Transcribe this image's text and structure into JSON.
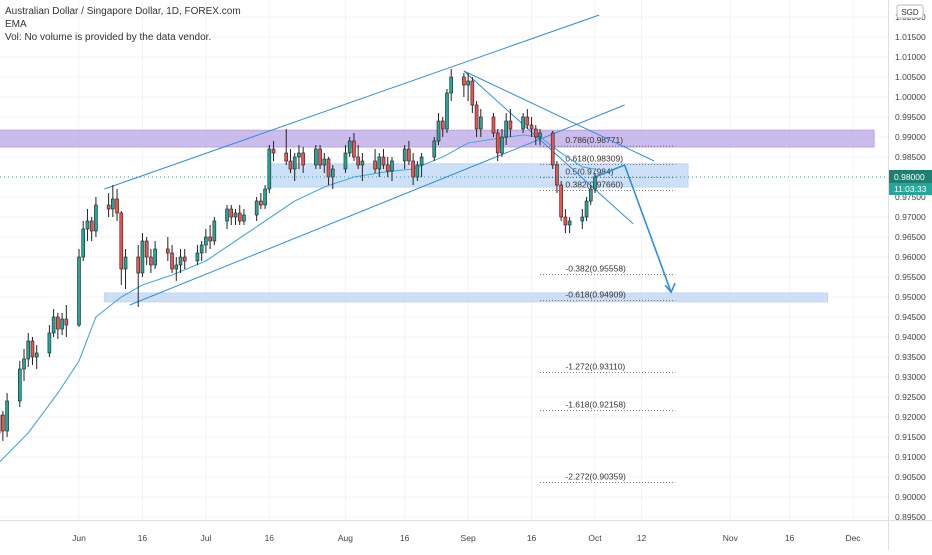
{
  "legend": {
    "symbol": "Australian Dollar / Singapore Dollar, 1D, FOREX.com",
    "indicator": "EMA",
    "volume_note": "Vol: No volume is provided by the data vendor."
  },
  "currency_badge": "SGD",
  "price_tag": {
    "price": "0.98000",
    "countdown": "11:03:33"
  },
  "colors": {
    "up": "#26a69a",
    "down": "#ef5350",
    "ema": "#4aa8e0",
    "trend": "#2f8ee0",
    "fib": "#555555",
    "resistance_zone": "#b9a6e6",
    "support_zone": "#bcd6f4",
    "price_tag": "#1e7f72",
    "time_tag": "#26a69a"
  },
  "chart_data": {
    "type": "candlestick",
    "symbol": "AUDSGD",
    "timeframe": "1D",
    "ylim": [
      0.8935,
      1.0235
    ],
    "y_ticks": [
      "0.89500",
      "0.90000",
      "0.90500",
      "0.91000",
      "0.91500",
      "0.92000",
      "0.92500",
      "0.93000",
      "0.93500",
      "0.94000",
      "0.94500",
      "0.95000",
      "0.95500",
      "0.96000",
      "0.96500",
      "0.97000",
      "0.97500",
      "0.98000",
      "0.98500",
      "0.99000",
      "0.99500",
      "1.00000",
      "1.00500",
      "1.01000",
      "1.01500",
      "1.02000"
    ],
    "x_ticks": [
      {
        "label": "Jun",
        "date": "2020-06-01"
      },
      {
        "label": "16",
        "date": "2020-06-16"
      },
      {
        "label": "Jul",
        "date": "2020-07-01"
      },
      {
        "label": "16",
        "date": "2020-07-16"
      },
      {
        "label": "Aug",
        "date": "2020-08-03"
      },
      {
        "label": "16",
        "date": "2020-08-17"
      },
      {
        "label": "Sep",
        "date": "2020-09-01"
      },
      {
        "label": "16",
        "date": "2020-09-16"
      },
      {
        "label": "Oct",
        "date": "2020-10-01"
      },
      {
        "label": "12",
        "date": "2020-10-12"
      },
      {
        "label": "Nov",
        "date": "2020-11-02"
      },
      {
        "label": "16",
        "date": "2020-11-16"
      },
      {
        "label": "Dec",
        "date": "2020-12-01"
      }
    ],
    "candles": [
      {
        "d": "2020-05-13",
        "o": 0.916,
        "h": 0.923,
        "l": 0.913,
        "c": 0.9205
      },
      {
        "d": "2020-05-14",
        "o": 0.9205,
        "h": 0.9215,
        "l": 0.914,
        "c": 0.9165
      },
      {
        "d": "2020-05-15",
        "o": 0.9165,
        "h": 0.926,
        "l": 0.915,
        "c": 0.924
      },
      {
        "d": "2020-05-18",
        "o": 0.924,
        "h": 0.934,
        "l": 0.9225,
        "c": 0.932
      },
      {
        "d": "2020-05-19",
        "o": 0.932,
        "h": 0.937,
        "l": 0.929,
        "c": 0.9345
      },
      {
        "d": "2020-05-20",
        "o": 0.9345,
        "h": 0.941,
        "l": 0.9325,
        "c": 0.939
      },
      {
        "d": "2020-05-21",
        "o": 0.939,
        "h": 0.94,
        "l": 0.933,
        "c": 0.935
      },
      {
        "d": "2020-05-22",
        "o": 0.935,
        "h": 0.938,
        "l": 0.932,
        "c": 0.936
      },
      {
        "d": "2020-05-25",
        "o": 0.936,
        "h": 0.943,
        "l": 0.935,
        "c": 0.941
      },
      {
        "d": "2020-05-26",
        "o": 0.941,
        "h": 0.947,
        "l": 0.94,
        "c": 0.945
      },
      {
        "d": "2020-05-27",
        "o": 0.945,
        "h": 0.946,
        "l": 0.9395,
        "c": 0.942
      },
      {
        "d": "2020-05-28",
        "o": 0.942,
        "h": 0.946,
        "l": 0.9405,
        "c": 0.9445
      },
      {
        "d": "2020-05-29",
        "o": 0.9445,
        "h": 0.948,
        "l": 0.94,
        "c": 0.943
      },
      {
        "d": "2020-06-01",
        "o": 0.943,
        "h": 0.962,
        "l": 0.9425,
        "c": 0.96
      },
      {
        "d": "2020-06-02",
        "o": 0.96,
        "h": 0.969,
        "l": 0.959,
        "c": 0.967
      },
      {
        "d": "2020-06-03",
        "o": 0.967,
        "h": 0.972,
        "l": 0.964,
        "c": 0.969
      },
      {
        "d": "2020-06-04",
        "o": 0.969,
        "h": 0.97,
        "l": 0.964,
        "c": 0.9665
      },
      {
        "d": "2020-06-05",
        "o": 0.9665,
        "h": 0.975,
        "l": 0.965,
        "c": 0.973
      },
      {
        "d": "2020-06-08",
        "o": 0.973,
        "h": 0.976,
        "l": 0.97,
        "c": 0.972
      },
      {
        "d": "2020-06-09",
        "o": 0.972,
        "h": 0.978,
        "l": 0.97,
        "c": 0.9745
      },
      {
        "d": "2020-06-10",
        "o": 0.9745,
        "h": 0.977,
        "l": 0.969,
        "c": 0.971
      },
      {
        "d": "2020-06-11",
        "o": 0.971,
        "h": 0.9715,
        "l": 0.953,
        "c": 0.957
      },
      {
        "d": "2020-06-12",
        "o": 0.957,
        "h": 0.962,
        "l": 0.952,
        "c": 0.96
      },
      {
        "d": "2020-06-15",
        "o": 0.96,
        "h": 0.963,
        "l": 0.9475,
        "c": 0.956
      },
      {
        "d": "2020-06-16",
        "o": 0.956,
        "h": 0.966,
        "l": 0.955,
        "c": 0.964
      },
      {
        "d": "2020-06-17",
        "o": 0.964,
        "h": 0.965,
        "l": 0.958,
        "c": 0.96
      },
      {
        "d": "2020-06-18",
        "o": 0.96,
        "h": 0.962,
        "l": 0.956,
        "c": 0.958
      },
      {
        "d": "2020-06-19",
        "o": 0.958,
        "h": 0.964,
        "l": 0.957,
        "c": 0.962
      },
      {
        "d": "2020-06-22",
        "o": 0.962,
        "h": 0.965,
        "l": 0.959,
        "c": 0.961
      },
      {
        "d": "2020-06-23",
        "o": 0.961,
        "h": 0.963,
        "l": 0.956,
        "c": 0.957
      },
      {
        "d": "2020-06-24",
        "o": 0.957,
        "h": 0.96,
        "l": 0.954,
        "c": 0.958
      },
      {
        "d": "2020-06-25",
        "o": 0.958,
        "h": 0.962,
        "l": 0.956,
        "c": 0.96
      },
      {
        "d": "2020-06-26",
        "o": 0.96,
        "h": 0.962,
        "l": 0.957,
        "c": 0.959
      },
      {
        "d": "2020-06-29",
        "o": 0.959,
        "h": 0.963,
        "l": 0.958,
        "c": 0.961
      },
      {
        "d": "2020-06-30",
        "o": 0.961,
        "h": 0.964,
        "l": 0.959,
        "c": 0.963
      },
      {
        "d": "2020-07-01",
        "o": 0.963,
        "h": 0.967,
        "l": 0.961,
        "c": 0.965
      },
      {
        "d": "2020-07-02",
        "o": 0.965,
        "h": 0.968,
        "l": 0.962,
        "c": 0.964
      },
      {
        "d": "2020-07-03",
        "o": 0.964,
        "h": 0.97,
        "l": 0.963,
        "c": 0.969
      },
      {
        "d": "2020-07-06",
        "o": 0.969,
        "h": 0.973,
        "l": 0.967,
        "c": 0.972
      },
      {
        "d": "2020-07-07",
        "o": 0.972,
        "h": 0.973,
        "l": 0.968,
        "c": 0.97
      },
      {
        "d": "2020-07-08",
        "o": 0.97,
        "h": 0.972,
        "l": 0.968,
        "c": 0.971
      },
      {
        "d": "2020-07-09",
        "o": 0.971,
        "h": 0.973,
        "l": 0.968,
        "c": 0.969
      },
      {
        "d": "2020-07-10",
        "o": 0.969,
        "h": 0.972,
        "l": 0.968,
        "c": 0.9705
      },
      {
        "d": "2020-07-13",
        "o": 0.9705,
        "h": 0.975,
        "l": 0.969,
        "c": 0.974
      },
      {
        "d": "2020-07-14",
        "o": 0.974,
        "h": 0.976,
        "l": 0.972,
        "c": 0.973
      },
      {
        "d": "2020-07-15",
        "o": 0.973,
        "h": 0.978,
        "l": 0.972,
        "c": 0.977
      },
      {
        "d": "2020-07-16",
        "o": 0.977,
        "h": 0.988,
        "l": 0.976,
        "c": 0.987
      },
      {
        "d": "2020-07-17",
        "o": 0.987,
        "h": 0.989,
        "l": 0.984,
        "c": 0.986
      },
      {
        "d": "2020-07-20",
        "o": 0.986,
        "h": 0.992,
        "l": 0.983,
        "c": 0.984
      },
      {
        "d": "2020-07-21",
        "o": 0.984,
        "h": 0.987,
        "l": 0.981,
        "c": 0.982
      },
      {
        "d": "2020-07-22",
        "o": 0.982,
        "h": 0.986,
        "l": 0.979,
        "c": 0.985
      },
      {
        "d": "2020-07-23",
        "o": 0.985,
        "h": 0.988,
        "l": 0.982,
        "c": 0.986
      },
      {
        "d": "2020-07-24",
        "o": 0.986,
        "h": 0.9875,
        "l": 0.981,
        "c": 0.983
      },
      {
        "d": "2020-07-27",
        "o": 0.983,
        "h": 0.988,
        "l": 0.982,
        "c": 0.987
      },
      {
        "d": "2020-07-28",
        "o": 0.987,
        "h": 0.988,
        "l": 0.982,
        "c": 0.983
      },
      {
        "d": "2020-07-29",
        "o": 0.983,
        "h": 0.986,
        "l": 0.981,
        "c": 0.9845
      },
      {
        "d": "2020-07-30",
        "o": 0.9845,
        "h": 0.985,
        "l": 0.978,
        "c": 0.98
      },
      {
        "d": "2020-07-31",
        "o": 0.98,
        "h": 0.983,
        "l": 0.977,
        "c": 0.982
      },
      {
        "d": "2020-08-03",
        "o": 0.982,
        "h": 0.988,
        "l": 0.981,
        "c": 0.986
      },
      {
        "d": "2020-08-04",
        "o": 0.986,
        "h": 0.99,
        "l": 0.985,
        "c": 0.989
      },
      {
        "d": "2020-08-05",
        "o": 0.989,
        "h": 0.991,
        "l": 0.984,
        "c": 0.985
      },
      {
        "d": "2020-08-06",
        "o": 0.985,
        "h": 0.988,
        "l": 0.982,
        "c": 0.983
      },
      {
        "d": "2020-08-07",
        "o": 0.983,
        "h": 0.986,
        "l": 0.979,
        "c": 0.984
      },
      {
        "d": "2020-08-10",
        "o": 0.984,
        "h": 0.987,
        "l": 0.981,
        "c": 0.982
      },
      {
        "d": "2020-08-11",
        "o": 0.982,
        "h": 0.986,
        "l": 0.98,
        "c": 0.985
      },
      {
        "d": "2020-08-12",
        "o": 0.985,
        "h": 0.987,
        "l": 0.982,
        "c": 0.983
      },
      {
        "d": "2020-08-13",
        "o": 0.983,
        "h": 0.985,
        "l": 0.98,
        "c": 0.9815
      },
      {
        "d": "2020-08-14",
        "o": 0.9815,
        "h": 0.985,
        "l": 0.979,
        "c": 0.984
      },
      {
        "d": "2020-08-17",
        "o": 0.984,
        "h": 0.988,
        "l": 0.982,
        "c": 0.987
      },
      {
        "d": "2020-08-18",
        "o": 0.987,
        "h": 0.989,
        "l": 0.983,
        "c": 0.984
      },
      {
        "d": "2020-08-19",
        "o": 0.984,
        "h": 0.986,
        "l": 0.978,
        "c": 0.98
      },
      {
        "d": "2020-08-20",
        "o": 0.98,
        "h": 0.984,
        "l": 0.979,
        "c": 0.983
      },
      {
        "d": "2020-08-21",
        "o": 0.983,
        "h": 0.986,
        "l": 0.98,
        "c": 0.985
      },
      {
        "d": "2020-08-24",
        "o": 0.985,
        "h": 0.99,
        "l": 0.984,
        "c": 0.989
      },
      {
        "d": "2020-08-25",
        "o": 0.989,
        "h": 0.996,
        "l": 0.988,
        "c": 0.994
      },
      {
        "d": "2020-08-26",
        "o": 0.994,
        "h": 0.995,
        "l": 0.99,
        "c": 0.992
      },
      {
        "d": "2020-08-27",
        "o": 0.992,
        "h": 1.002,
        "l": 0.991,
        "c": 1.001
      },
      {
        "d": "2020-08-28",
        "o": 1.001,
        "h": 1.007,
        "l": 0.999,
        "c": 1.005
      },
      {
        "d": "2020-08-31",
        "o": 1.005,
        "h": 1.006,
        "l": 1.0,
        "c": 1.003
      },
      {
        "d": "2020-09-01",
        "o": 1.003,
        "h": 1.006,
        "l": 0.999,
        "c": 1.004
      },
      {
        "d": "2020-09-02",
        "o": 1.004,
        "h": 1.005,
        "l": 0.996,
        "c": 0.998
      },
      {
        "d": "2020-09-03",
        "o": 0.998,
        "h": 0.999,
        "l": 0.99,
        "c": 0.992
      },
      {
        "d": "2020-09-04",
        "o": 0.992,
        "h": 0.997,
        "l": 0.99,
        "c": 0.995
      },
      {
        "d": "2020-09-07",
        "o": 0.995,
        "h": 0.996,
        "l": 0.99,
        "c": 0.991
      },
      {
        "d": "2020-09-08",
        "o": 0.991,
        "h": 0.992,
        "l": 0.984,
        "c": 0.986
      },
      {
        "d": "2020-09-09",
        "o": 0.986,
        "h": 0.992,
        "l": 0.985,
        "c": 0.99
      },
      {
        "d": "2020-09-10",
        "o": 0.99,
        "h": 0.996,
        "l": 0.988,
        "c": 0.994
      },
      {
        "d": "2020-09-11",
        "o": 0.994,
        "h": 0.997,
        "l": 0.99,
        "c": 0.992
      },
      {
        "d": "2020-09-14",
        "o": 0.992,
        "h": 0.996,
        "l": 0.991,
        "c": 0.995
      },
      {
        "d": "2020-09-15",
        "o": 0.995,
        "h": 0.997,
        "l": 0.992,
        "c": 0.993
      },
      {
        "d": "2020-09-16",
        "o": 0.993,
        "h": 0.995,
        "l": 0.99,
        "c": 0.992
      },
      {
        "d": "2020-09-17",
        "o": 0.992,
        "h": 0.993,
        "l": 0.988,
        "c": 0.99
      },
      {
        "d": "2020-09-18",
        "o": 0.99,
        "h": 0.992,
        "l": 0.988,
        "c": 0.991
      },
      {
        "d": "2020-09-21",
        "o": 0.991,
        "h": 0.9915,
        "l": 0.982,
        "c": 0.983
      },
      {
        "d": "2020-09-22",
        "o": 0.983,
        "h": 0.984,
        "l": 0.976,
        "c": 0.978
      },
      {
        "d": "2020-09-23",
        "o": 0.978,
        "h": 0.979,
        "l": 0.969,
        "c": 0.97
      },
      {
        "d": "2020-09-24",
        "o": 0.97,
        "h": 0.972,
        "l": 0.966,
        "c": 0.968
      },
      {
        "d": "2020-09-25",
        "o": 0.968,
        "h": 0.97,
        "l": 0.966,
        "c": 0.969
      },
      {
        "d": "2020-09-28",
        "o": 0.969,
        "h": 0.972,
        "l": 0.967,
        "c": 0.97
      },
      {
        "d": "2020-09-29",
        "o": 0.97,
        "h": 0.975,
        "l": 0.969,
        "c": 0.974
      },
      {
        "d": "2020-09-30",
        "o": 0.974,
        "h": 0.978,
        "l": 0.973,
        "c": 0.977
      },
      {
        "d": "2020-10-01",
        "o": 0.977,
        "h": 0.981,
        "l": 0.976,
        "c": 0.98
      }
    ],
    "ema": [
      {
        "d": "2020-05-13",
        "v": 0.9085
      },
      {
        "d": "2020-05-20",
        "v": 0.916
      },
      {
        "d": "2020-05-27",
        "v": 0.926
      },
      {
        "d": "2020-06-01",
        "v": 0.934
      },
      {
        "d": "2020-06-05",
        "v": 0.945
      },
      {
        "d": "2020-06-11",
        "v": 0.95
      },
      {
        "d": "2020-06-16",
        "v": 0.953
      },
      {
        "d": "2020-06-23",
        "v": 0.9555
      },
      {
        "d": "2020-07-01",
        "v": 0.959
      },
      {
        "d": "2020-07-08",
        "v": 0.964
      },
      {
        "d": "2020-07-15",
        "v": 0.969
      },
      {
        "d": "2020-07-22",
        "v": 0.974
      },
      {
        "d": "2020-07-29",
        "v": 0.9775
      },
      {
        "d": "2020-08-05",
        "v": 0.98
      },
      {
        "d": "2020-08-12",
        "v": 0.9812
      },
      {
        "d": "2020-08-19",
        "v": 0.982
      },
      {
        "d": "2020-08-26",
        "v": 0.985
      },
      {
        "d": "2020-09-01",
        "v": 0.9885
      },
      {
        "d": "2020-09-07",
        "v": 0.9895
      },
      {
        "d": "2020-09-14",
        "v": 0.9905
      },
      {
        "d": "2020-09-18",
        "v": 0.99
      },
      {
        "d": "2020-09-23",
        "v": 0.986
      },
      {
        "d": "2020-09-28",
        "v": 0.9825
      },
      {
        "d": "2020-10-01",
        "v": 0.982
      }
    ],
    "fib_levels": [
      {
        "label": "0.786(0.98771)",
        "value": 0.98771
      },
      {
        "label": "0.618(0.98309)",
        "value": 0.98309
      },
      {
        "label": "0.5(0.97984)",
        "value": 0.97984
      },
      {
        "label": "0.382(0.97660)",
        "value": 0.9766
      },
      {
        "label": "-0.382(0.95558)",
        "value": 0.95558
      },
      {
        "label": "-0.618(0.94909)",
        "value": 0.94909
      },
      {
        "label": "-1.272(0.93110)",
        "value": 0.9311
      },
      {
        "label": "-1.618(0.92158)",
        "value": 0.92158
      },
      {
        "label": "-2.272(0.90359)",
        "value": 0.90359
      }
    ],
    "zones": [
      {
        "kind": "resistance",
        "from": "2020-05-13",
        "to": "2020-12-06",
        "low": 0.9875,
        "high": 0.9917
      },
      {
        "kind": "support-fib",
        "from": "2020-07-16",
        "to": "2020-10-23",
        "low": 0.9775,
        "high": 0.9833
      },
      {
        "kind": "support",
        "from": "2020-06-07",
        "to": "2020-11-25",
        "low": 0.9488,
        "high": 0.951
      }
    ],
    "trendlines": [
      {
        "kind": "channel-upper",
        "from": {
          "d": "2020-06-07",
          "v": 0.977
        },
        "to": {
          "d": "2020-10-02",
          "v": 1.0205
        }
      },
      {
        "kind": "channel-lower",
        "from": {
          "d": "2020-06-13",
          "v": 0.948
        },
        "to": {
          "d": "2020-10-08",
          "v": 0.998
        }
      },
      {
        "kind": "falling-upper",
        "from": {
          "d": "2020-08-31",
          "v": 1.0065
        },
        "to": {
          "d": "2020-10-15",
          "v": 0.984
        }
      },
      {
        "kind": "falling-lower",
        "from": {
          "d": "2020-08-31",
          "v": 1.0065
        },
        "to": {
          "d": "2020-10-10",
          "v": 0.9683
        }
      },
      {
        "kind": "projection",
        "from": {
          "d": "2020-10-01",
          "v": 0.98
        },
        "mid": {
          "d": "2020-10-08",
          "v": 0.983
        },
        "to": {
          "d": "2020-10-19",
          "v": 0.9512
        }
      }
    ],
    "last_price": 0.98
  }
}
